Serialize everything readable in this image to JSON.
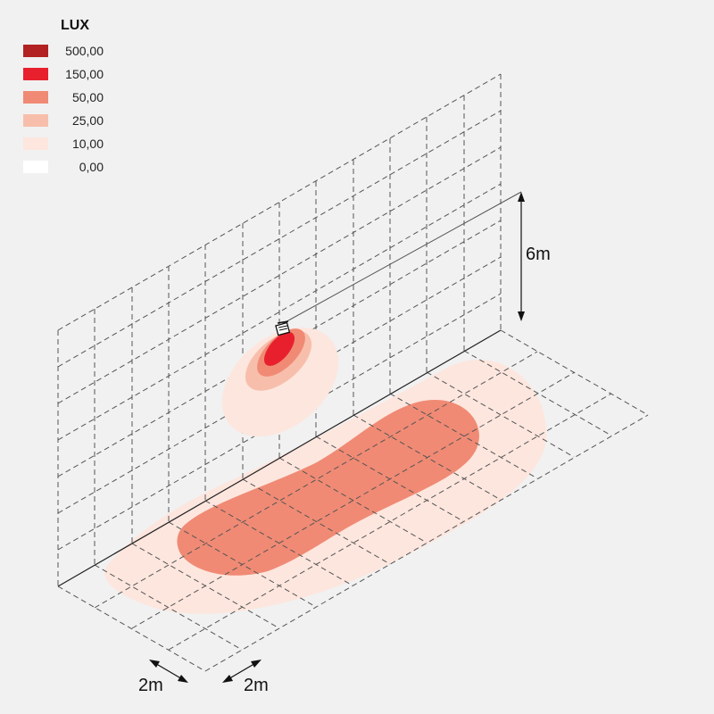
{
  "legend": {
    "title": "LUX",
    "levels": [
      {
        "value": "500,00",
        "color": "#b22222"
      },
      {
        "value": "150,00",
        "color": "#e8202e"
      },
      {
        "value": "50,00",
        "color": "#f08a74"
      },
      {
        "value": "25,00",
        "color": "#f7bfab"
      },
      {
        "value": "10,00",
        "color": "#fde6de"
      },
      {
        "value": "0,00",
        "color": "#ffffff"
      }
    ]
  },
  "dimensions": {
    "height_label": "6m",
    "grid_spacing_label_a": "2m",
    "grid_spacing_label_b": "2m"
  },
  "icons": {
    "fixture": "floodlight-fixture-icon"
  }
}
